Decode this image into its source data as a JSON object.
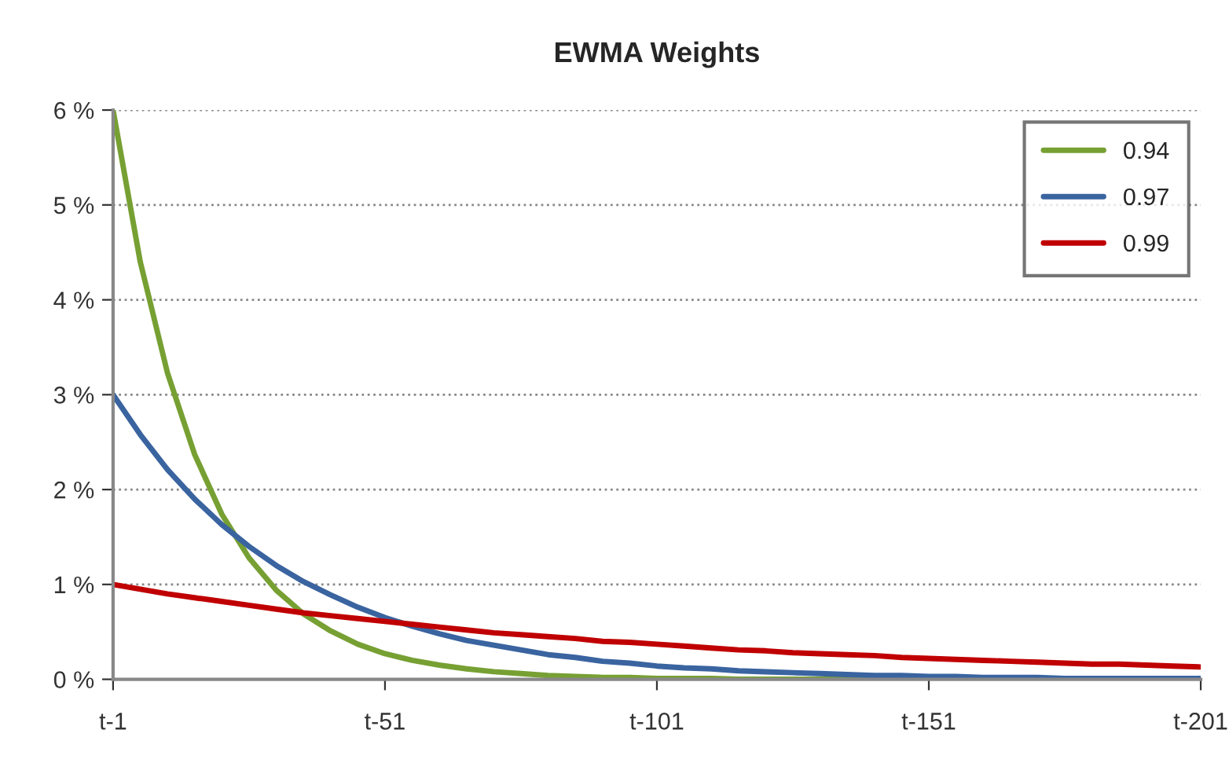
{
  "chart_data": {
    "type": "line",
    "title": "EWMA Weights",
    "categories": [
      "t-1",
      null,
      null,
      null,
      null,
      null,
      null,
      null,
      null,
      null,
      "t-51",
      null,
      null,
      null,
      null,
      null,
      null,
      null,
      null,
      null,
      "t-101",
      null,
      null,
      null,
      null,
      null,
      null,
      null,
      null,
      null,
      "t-151",
      null,
      null,
      null,
      null,
      null,
      null,
      null,
      null,
      null,
      "t-201"
    ],
    "series": [
      {
        "name": "0.94",
        "color": "#77a033",
        "values": [
          6.0,
          4.4,
          3.23,
          2.37,
          1.74,
          1.28,
          0.94,
          0.69,
          0.51,
          0.37,
          0.27,
          0.2,
          0.15,
          0.11,
          0.08,
          0.06,
          0.04,
          0.03,
          0.02,
          0.02,
          0.01,
          0.01,
          0.01,
          0.0,
          0.0,
          0.0,
          0.0,
          0.0,
          0.0,
          null,
          null,
          null,
          null,
          null,
          null,
          null,
          null,
          null,
          null,
          null,
          null
        ]
      },
      {
        "name": "0.97",
        "color": "#3a64a0",
        "values": [
          3.0,
          2.58,
          2.21,
          1.9,
          1.63,
          1.4,
          1.2,
          1.03,
          0.89,
          0.76,
          0.65,
          0.56,
          0.48,
          0.41,
          0.36,
          0.31,
          0.26,
          0.23,
          0.19,
          0.17,
          0.14,
          0.12,
          0.11,
          0.09,
          0.08,
          0.07,
          0.06,
          0.05,
          0.04,
          0.04,
          0.03,
          0.03,
          0.02,
          0.02,
          0.02,
          0.01,
          0.01,
          0.01,
          0.01,
          0.01,
          0.01
        ]
      },
      {
        "name": "0.99",
        "color": "#c00000",
        "values": [
          1.0,
          0.95,
          0.9,
          0.86,
          0.82,
          0.78,
          0.74,
          0.7,
          0.67,
          0.64,
          0.61,
          0.58,
          0.55,
          0.52,
          0.49,
          0.47,
          0.45,
          0.43,
          0.4,
          0.39,
          0.37,
          0.35,
          0.33,
          0.31,
          0.3,
          0.28,
          0.27,
          0.26,
          0.25,
          0.23,
          0.22,
          0.21,
          0.2,
          0.19,
          0.18,
          0.17,
          0.16,
          0.16,
          0.15,
          0.14,
          0.13
        ]
      }
    ],
    "ylim": [
      0,
      6
    ],
    "yticks": [
      {
        "value": 0,
        "label": "0 %"
      },
      {
        "value": 1,
        "label": "1 %"
      },
      {
        "value": 2,
        "label": "2 %"
      },
      {
        "value": 3,
        "label": "3 %"
      },
      {
        "value": 4,
        "label": "4 %"
      },
      {
        "value": 5,
        "label": "5 %"
      },
      {
        "value": 6,
        "label": "6 %"
      }
    ],
    "grid": "y",
    "legend": "top right",
    "marker": "none",
    "line_style": "solid"
  }
}
